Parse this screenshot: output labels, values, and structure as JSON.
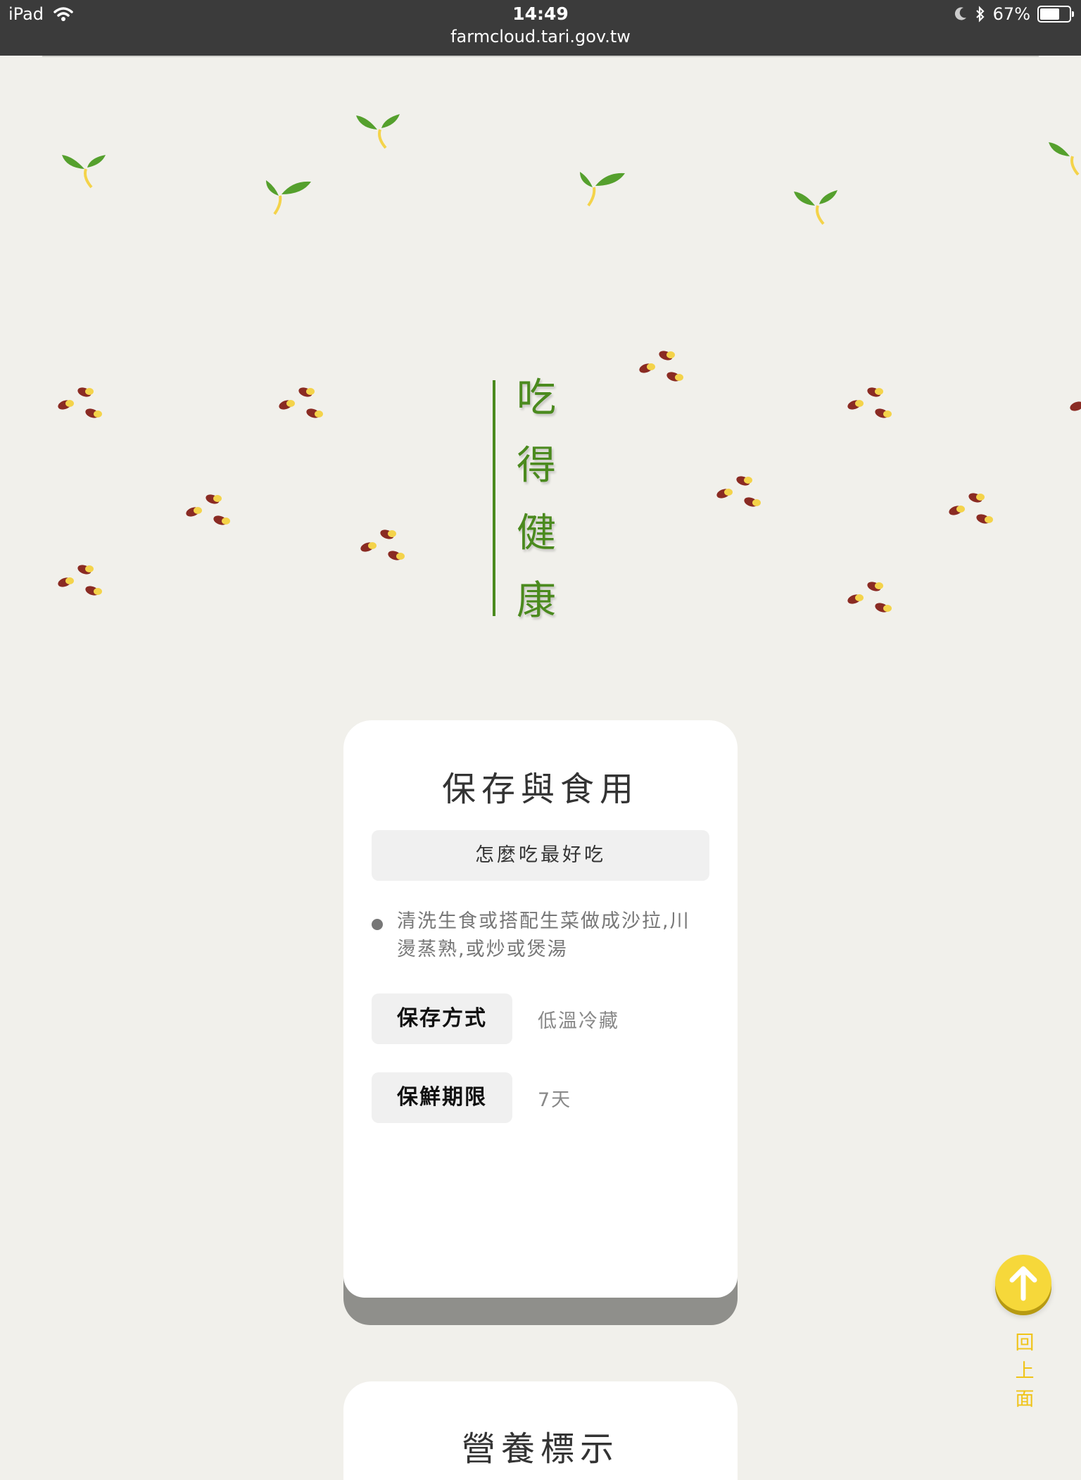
{
  "status_bar": {
    "device": "iPad",
    "time": "14:49",
    "url": "farmcloud.tari.gov.tw",
    "battery": "67%",
    "battery_level": 0.67
  },
  "hero": {
    "chars": [
      "吃",
      "得",
      "健",
      "康"
    ],
    "accent_color": "#4b8a1e"
  },
  "card": {
    "title": "保存與食用",
    "how_to_eat_label": "怎麼吃最好吃",
    "tip": "清洗生食或搭配生菜做成沙拉,川燙蒸熟,或炒或煲湯",
    "rows": [
      {
        "label": "保存方式",
        "value": "低溫冷藏"
      },
      {
        "label": "保鮮期限",
        "value": "7天"
      }
    ]
  },
  "card2": {
    "title": "營養標示"
  },
  "back_to_top": {
    "label": "回上面",
    "color": "#f6d83a"
  }
}
